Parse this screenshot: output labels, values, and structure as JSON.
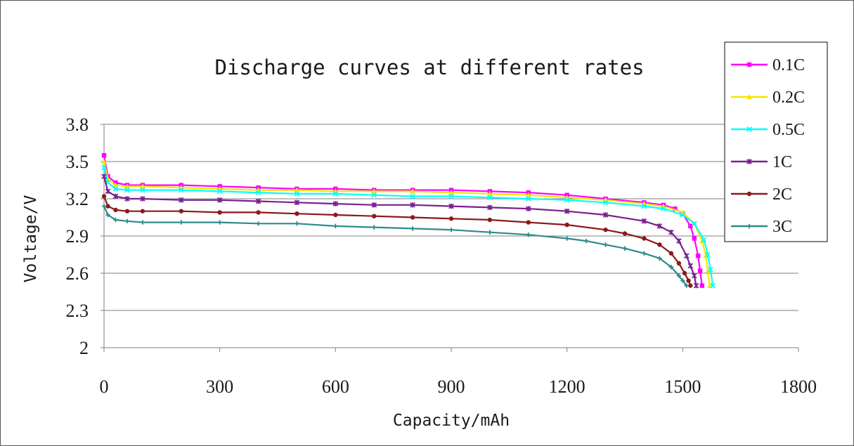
{
  "chart_data": {
    "type": "line",
    "title": "Discharge curves at different rates",
    "xlabel": "Capacity/mAh",
    "ylabel": "Voltage/V",
    "xlim": [
      0,
      1800
    ],
    "ylim": [
      2,
      3.8
    ],
    "x_ticks": [
      "0",
      "300",
      "600",
      "900",
      "1200",
      "1500",
      "1800"
    ],
    "y_ticks": [
      "2",
      "2.3",
      "2.6",
      "2.9",
      "3.2",
      "3.5",
      "3.8"
    ],
    "grid": "horizontal",
    "legend_position": "right",
    "series": [
      {
        "name": "0.1C",
        "color": "#ff00ff",
        "marker": "square",
        "x": [
          0,
          10,
          30,
          60,
          100,
          200,
          300,
          400,
          500,
          600,
          700,
          800,
          900,
          1000,
          1100,
          1200,
          1300,
          1400,
          1450,
          1480,
          1500,
          1520,
          1530,
          1540,
          1545,
          1550
        ],
        "y": [
          3.55,
          3.38,
          3.33,
          3.31,
          3.31,
          3.31,
          3.3,
          3.29,
          3.28,
          3.28,
          3.27,
          3.27,
          3.27,
          3.26,
          3.25,
          3.23,
          3.2,
          3.17,
          3.15,
          3.12,
          3.08,
          2.98,
          2.88,
          2.74,
          2.62,
          2.5
        ]
      },
      {
        "name": "0.2C",
        "color": "#f5e600",
        "marker": "triangle",
        "x": [
          0,
          10,
          30,
          60,
          100,
          200,
          300,
          400,
          500,
          600,
          700,
          800,
          900,
          1000,
          1100,
          1200,
          1300,
          1400,
          1450,
          1500,
          1530,
          1550,
          1560,
          1565,
          1570
        ],
        "y": [
          3.5,
          3.36,
          3.31,
          3.3,
          3.3,
          3.29,
          3.28,
          3.27,
          3.27,
          3.26,
          3.26,
          3.26,
          3.25,
          3.24,
          3.23,
          3.21,
          3.19,
          3.16,
          3.14,
          3.09,
          3.0,
          2.86,
          2.74,
          2.62,
          2.5
        ]
      },
      {
        "name": "0.5C",
        "color": "#00ffff",
        "marker": "x",
        "x": [
          0,
          10,
          30,
          60,
          100,
          200,
          300,
          400,
          500,
          600,
          700,
          800,
          900,
          1000,
          1100,
          1200,
          1300,
          1400,
          1450,
          1500,
          1530,
          1555,
          1565,
          1572,
          1578
        ],
        "y": [
          3.45,
          3.33,
          3.28,
          3.27,
          3.27,
          3.27,
          3.26,
          3.25,
          3.24,
          3.24,
          3.23,
          3.22,
          3.22,
          3.21,
          3.2,
          3.19,
          3.17,
          3.14,
          3.12,
          3.07,
          3.0,
          2.87,
          2.75,
          2.63,
          2.5
        ]
      },
      {
        "name": "1C",
        "color": "#7a1f8f",
        "marker": "asterisk",
        "x": [
          0,
          10,
          30,
          60,
          100,
          200,
          300,
          400,
          500,
          600,
          700,
          800,
          900,
          1000,
          1100,
          1200,
          1300,
          1400,
          1440,
          1470,
          1490,
          1510,
          1520,
          1530,
          1535
        ],
        "y": [
          3.38,
          3.26,
          3.22,
          3.2,
          3.2,
          3.19,
          3.19,
          3.18,
          3.17,
          3.16,
          3.15,
          3.15,
          3.14,
          3.13,
          3.12,
          3.1,
          3.07,
          3.02,
          2.98,
          2.93,
          2.86,
          2.74,
          2.66,
          2.58,
          2.5
        ]
      },
      {
        "name": "2C",
        "color": "#8b1a1a",
        "marker": "circle",
        "x": [
          0,
          10,
          30,
          60,
          100,
          200,
          300,
          400,
          500,
          600,
          700,
          800,
          900,
          1000,
          1100,
          1200,
          1300,
          1350,
          1400,
          1440,
          1470,
          1490,
          1505,
          1515,
          1520
        ],
        "y": [
          3.22,
          3.14,
          3.11,
          3.1,
          3.1,
          3.1,
          3.09,
          3.09,
          3.08,
          3.07,
          3.06,
          3.05,
          3.04,
          3.03,
          3.01,
          2.99,
          2.95,
          2.92,
          2.88,
          2.83,
          2.76,
          2.68,
          2.6,
          2.54,
          2.5
        ]
      },
      {
        "name": "3C",
        "color": "#2e8b8b",
        "marker": "plus",
        "x": [
          0,
          10,
          30,
          60,
          100,
          200,
          300,
          400,
          500,
          600,
          700,
          800,
          900,
          1000,
          1100,
          1200,
          1250,
          1300,
          1350,
          1400,
          1440,
          1470,
          1490,
          1500,
          1510
        ],
        "y": [
          3.14,
          3.07,
          3.03,
          3.02,
          3.01,
          3.01,
          3.01,
          3.0,
          3.0,
          2.98,
          2.97,
          2.96,
          2.95,
          2.93,
          2.91,
          2.88,
          2.86,
          2.83,
          2.8,
          2.76,
          2.72,
          2.65,
          2.58,
          2.54,
          2.5
        ]
      }
    ]
  }
}
